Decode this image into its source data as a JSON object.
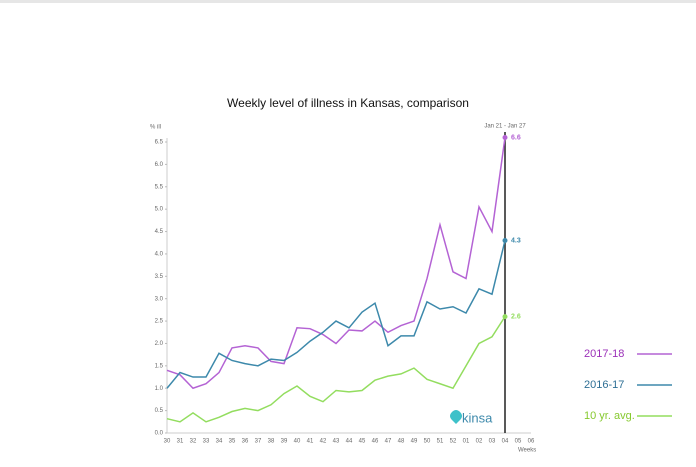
{
  "chart_data": {
    "type": "line",
    "title": "Weekly level of illness in Kansas, comparison",
    "ylabel": "% ill",
    "xlabel": "Weeks",
    "annotation": "Jan 21 - Jan 27",
    "watermark": "kinsa",
    "categories": [
      "30",
      "31",
      "32",
      "33",
      "34",
      "35",
      "36",
      "37",
      "38",
      "39",
      "40",
      "41",
      "42",
      "43",
      "44",
      "45",
      "46",
      "47",
      "48",
      "49",
      "50",
      "51",
      "52",
      "01",
      "02",
      "03",
      "04",
      "05",
      "06"
    ],
    "series": [
      {
        "name": "2017-18",
        "color": "#b463d4",
        "label_color": "#9b30b8",
        "values": [
          1.4,
          1.3,
          1.0,
          1.1,
          1.35,
          1.9,
          1.95,
          1.9,
          1.6,
          1.55,
          2.35,
          2.33,
          2.2,
          2.0,
          2.3,
          2.28,
          2.5,
          2.25,
          2.4,
          2.5,
          3.45,
          4.65,
          3.6,
          3.45,
          5.05,
          4.5,
          6.6,
          null,
          null
        ]
      },
      {
        "name": "2016-17",
        "color": "#3d89ab",
        "label_color": "#2e6f95",
        "values": [
          1.0,
          1.35,
          1.25,
          1.25,
          1.78,
          1.62,
          1.55,
          1.5,
          1.65,
          1.62,
          1.8,
          2.05,
          2.25,
          2.5,
          2.35,
          2.7,
          2.9,
          1.95,
          2.17,
          2.17,
          2.93,
          2.77,
          2.82,
          2.68,
          3.22,
          3.1,
          4.3,
          null,
          null
        ]
      },
      {
        "name": "10 yr. avg.",
        "color": "#93dd5f",
        "label_color": "#86c92e",
        "values": [
          0.32,
          0.25,
          0.45,
          0.25,
          0.35,
          0.48,
          0.55,
          0.5,
          0.63,
          0.88,
          1.05,
          0.82,
          0.7,
          0.95,
          0.92,
          0.95,
          1.18,
          1.27,
          1.32,
          1.45,
          1.2,
          1.1,
          1.0,
          1.5,
          2.0,
          2.15,
          2.6,
          null,
          null
        ]
      }
    ],
    "ylim": [
      0,
      6.5
    ],
    "yticks": [
      {
        "value": 0,
        "label": "0.0"
      },
      0.5,
      {
        "value": 1,
        "label": "1.0"
      },
      1.5,
      {
        "value": 2,
        "label": "2.0"
      },
      2.5,
      {
        "value": 3,
        "label": "3.0"
      },
      3.5,
      {
        "value": 4,
        "label": "4.0"
      },
      4.5,
      {
        "value": 5,
        "label": "5.0"
      },
      5.5,
      {
        "value": 6,
        "label": "6.0"
      },
      6.5
    ],
    "highlight_index": 26,
    "legend": "right"
  }
}
